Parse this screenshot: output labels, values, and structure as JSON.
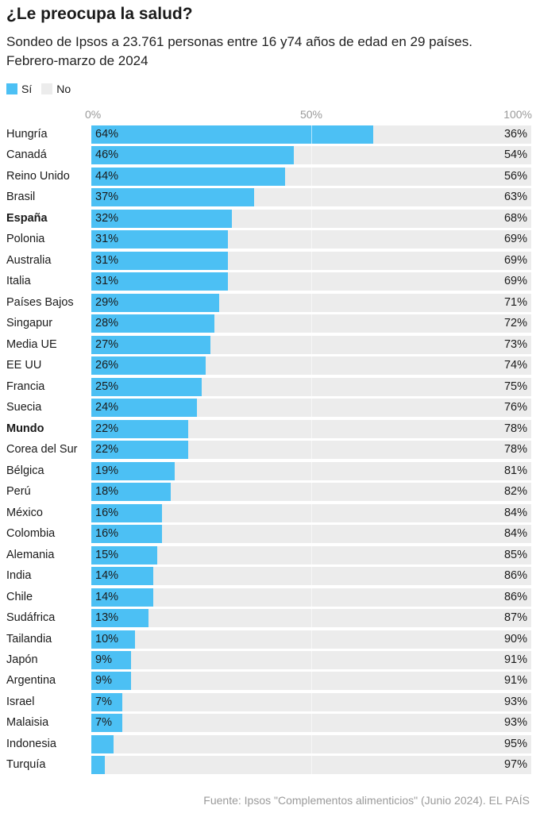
{
  "header": {
    "title": "¿Le preocupa la salud?",
    "subtitle": "Sondeo de Ipsos a 23.761 personas entre 16 y74 años de edad en 29 países. Febrero-marzo de 2024"
  },
  "legend": [
    {
      "label": "Sí",
      "color": "#4cc0f4"
    },
    {
      "label": "No",
      "color": "#ececec"
    }
  ],
  "footer": {
    "source": "Fuente: Ipsos \"Complementos alimenticios\" (Junio 2024). EL PAÍS"
  },
  "chart_data": {
    "type": "bar",
    "orientation": "horizontal",
    "stacked": true,
    "title": "¿Le preocupa la salud?",
    "xlim": [
      0,
      100
    ],
    "x_ticks": [
      "0%",
      "50%",
      "100%"
    ],
    "grid": true,
    "legend_position": "top-left",
    "highlighted": [
      "España",
      "Mundo"
    ],
    "categories": [
      "Hungría",
      "Canadá",
      "Reino Unido",
      "Brasil",
      "España",
      "Polonia",
      "Australia",
      "Italia",
      "Países Bajos",
      "Singapur",
      "Media UE",
      "EE UU",
      "Francia",
      "Suecia",
      "Mundo",
      "Corea del Sur",
      "Bélgica",
      "Perú",
      "México",
      "Colombia",
      "Alemania",
      "India",
      "Chile",
      "Sudáfrica",
      "Tailandia",
      "Japón",
      "Argentina",
      "Israel",
      "Malaisia",
      "Indonesia",
      "Turquía"
    ],
    "series": [
      {
        "name": "Sí",
        "color": "#4cc0f4",
        "values": [
          64,
          46,
          44,
          37,
          32,
          31,
          31,
          31,
          29,
          28,
          27,
          26,
          25,
          24,
          22,
          22,
          19,
          18,
          16,
          16,
          15,
          14,
          14,
          13,
          10,
          9,
          9,
          7,
          7,
          5,
          3
        ],
        "value_labels": [
          "64%",
          "46%",
          "44%",
          "37%",
          "32%",
          "31%",
          "31%",
          "31%",
          "29%",
          "28%",
          "27%",
          "26%",
          "25%",
          "24%",
          "22%",
          "22%",
          "19%",
          "18%",
          "16%",
          "16%",
          "15%",
          "14%",
          "14%",
          "13%",
          "10%",
          "9%",
          "9%",
          "7%",
          "7%",
          "",
          ""
        ]
      },
      {
        "name": "No",
        "color": "#ececec",
        "values": [
          36,
          54,
          56,
          63,
          68,
          69,
          69,
          69,
          71,
          72,
          73,
          74,
          75,
          76,
          78,
          78,
          81,
          82,
          84,
          84,
          85,
          86,
          86,
          87,
          90,
          91,
          91,
          93,
          93,
          95,
          97
        ],
        "value_labels": [
          "36%",
          "54%",
          "56%",
          "63%",
          "68%",
          "69%",
          "69%",
          "69%",
          "71%",
          "72%",
          "73%",
          "74%",
          "75%",
          "76%",
          "78%",
          "78%",
          "81%",
          "82%",
          "84%",
          "84%",
          "85%",
          "86%",
          "86%",
          "87%",
          "90%",
          "91%",
          "91%",
          "93%",
          "93%",
          "95%",
          "97%"
        ]
      }
    ]
  }
}
